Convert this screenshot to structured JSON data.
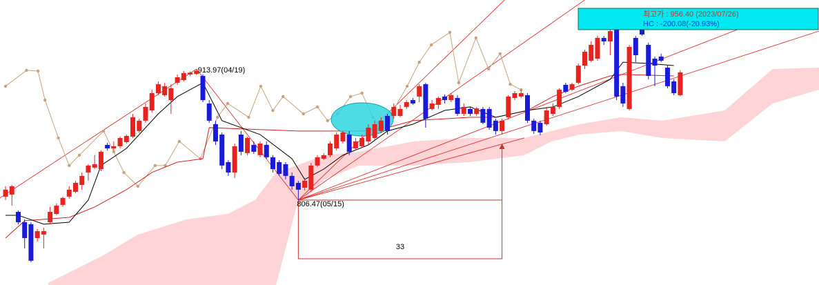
{
  "chart_data": {
    "type": "candlestick",
    "xlim": [
      -0.87,
      127.8
    ],
    "ylim": [
      736.8,
      970.6
    ],
    "up_color": "#e8231f",
    "down_color": "#1a1adb",
    "open": [
      809.3,
      811.0,
      796.8,
      788.3,
      786.7,
      775.3,
      778.2,
      788.3,
      795.1,
      802.5,
      809.3,
      813.2,
      818.9,
      829.1,
      833.1,
      831.9,
      851.7,
      848.9,
      850.6,
      854.0,
      858.5,
      863.1,
      871.6,
      880.0,
      894.2,
      892.5,
      888.5,
      902.7,
      904.9,
      909.5,
      910.0,
      908.3,
      885.7,
      868.7,
      860.2,
      837.6,
      829.1,
      860.2,
      845.0,
      851.7,
      843.3,
      851.7,
      841.6,
      837.6,
      835.9,
      826.3,
      820.6,
      816.6,
      815.0,
      834.8,
      840.4,
      843.3,
      848.9,
      854.6,
      860.2,
      848.9,
      850.6,
      854.6,
      857.4,
      863.1,
      875.5,
      875.5,
      875.5,
      882.9,
      888.5,
      891.4,
      901.5,
      881.2,
      884.6,
      891.4,
      888.5,
      890.2,
      877.2,
      881.2,
      877.2,
      881.2,
      881.2,
      871.6,
      863.1,
      874.4,
      890.2,
      891.4,
      892.5,
      871.6,
      869.9,
      868.7,
      877.2,
      882.9,
      901.0,
      897.0,
      902.7,
      916.8,
      920.8,
      922.5,
      939.5,
      936.6,
      948.0,
      899.9,
      881.2,
      939.5,
      950.8,
      933.8,
      922.5,
      924.2,
      915.1,
      903.8,
      892.5
    ],
    "high": [
      817.8,
      818.9,
      798.0,
      790.6,
      788.3,
      782.7,
      783.8,
      800.8,
      803.6,
      809.3,
      817.8,
      822.3,
      829.1,
      835.9,
      843.3,
      847.2,
      853.4,
      854.6,
      858.5,
      860.2,
      877.2,
      873.2,
      885.7,
      897.0,
      903.8,
      902.7,
      901.5,
      909.5,
      912.3,
      912.0,
      913.97,
      909.5,
      888.5,
      871.6,
      861.9,
      839.3,
      852.9,
      863.1,
      858.5,
      854.6,
      854.6,
      854.6,
      843.3,
      839.3,
      837.6,
      829.1,
      822.3,
      824.6,
      837.0,
      843.3,
      845.0,
      854.6,
      861.9,
      863.1,
      863.1,
      857.4,
      860.2,
      868.7,
      871.6,
      874.4,
      877.2,
      885.7,
      884.6,
      888.5,
      890.2,
      901.5,
      902.7,
      888.5,
      891.4,
      893.1,
      894.2,
      892.5,
      885.7,
      882.9,
      882.9,
      882.9,
      882.9,
      873.2,
      873.2,
      892.5,
      895.9,
      897.0,
      894.2,
      873.2,
      871.6,
      882.9,
      885.7,
      898.2,
      902.7,
      902.7,
      918.5,
      929.8,
      936.6,
      941.2,
      941.2,
      948.0,
      956.4,
      902.7,
      933.8,
      941.2,
      955.0,
      935.5,
      924.2,
      926.5,
      916.8,
      905.5,
      912.9
    ],
    "low": [
      806.5,
      801.9,
      786.7,
      766.8,
      755.5,
      772.5,
      766.8,
      786.7,
      794.0,
      800.8,
      807.6,
      812.1,
      815.0,
      822.3,
      831.9,
      830.2,
      847.2,
      847.2,
      848.9,
      852.9,
      857.4,
      861.4,
      869.9,
      878.3,
      892.5,
      891.4,
      877.2,
      901.0,
      903.8,
      908.3,
      909.0,
      886.8,
      869.9,
      851.7,
      831.9,
      826.3,
      824.6,
      843.3,
      843.3,
      844.4,
      841.6,
      840.4,
      829.1,
      826.3,
      823.4,
      815.0,
      806.47,
      814.4,
      813.2,
      833.6,
      839.3,
      841.6,
      847.2,
      852.9,
      843.3,
      847.2,
      849.5,
      851.7,
      855.7,
      861.4,
      860.2,
      873.2,
      874.4,
      881.2,
      884.6,
      886.8,
      865.9,
      880.0,
      881.2,
      885.7,
      886.8,
      875.5,
      875.5,
      875.5,
      875.5,
      868.7,
      864.2,
      860.2,
      860.2,
      872.7,
      888.5,
      890.2,
      869.9,
      860.8,
      859.7,
      867.6,
      875.5,
      881.2,
      894.2,
      895.9,
      901.5,
      914.0,
      919.6,
      920.8,
      933.8,
      925.3,
      888.5,
      882.9,
      880.0,
      919.6,
      941.2,
      905.5,
      899.9,
      919.6,
      898.2,
      892.5,
      891.4
    ],
    "close": [
      815.0,
      817.8,
      788.3,
      775.3,
      756.7,
      781.0,
      781.0,
      796.8,
      801.9,
      808.2,
      815.0,
      820.6,
      826.3,
      834.8,
      835.9,
      846.1,
      848.9,
      850.6,
      857.4,
      859.1,
      874.4,
      871.6,
      882.9,
      894.2,
      901.5,
      899.9,
      898.2,
      907.2,
      910.6,
      911.0,
      912.5,
      888.5,
      871.6,
      854.6,
      834.8,
      829.1,
      850.6,
      846.1,
      857.4,
      846.1,
      852.9,
      841.6,
      831.9,
      828.0,
      826.3,
      817.8,
      815.0,
      822.3,
      834.8,
      841.6,
      843.3,
      852.9,
      860.2,
      861.9,
      846.1,
      854.6,
      857.4,
      865.9,
      868.7,
      871.6,
      863.1,
      882.9,
      881.2,
      886.8,
      885.7,
      899.9,
      873.2,
      885.7,
      890.2,
      888.5,
      892.5,
      877.2,
      882.9,
      877.2,
      881.7,
      869.9,
      865.9,
      863.1,
      871.6,
      891.4,
      894.2,
      894.2,
      871.6,
      863.1,
      861.9,
      880.0,
      882.9,
      897.0,
      895.3,
      901.5,
      916.8,
      928.2,
      933.8,
      939.5,
      936.6,
      945.1,
      891.4,
      885.7,
      932.1,
      925.3,
      942.3,
      908.3,
      916.8,
      920.8,
      899.9,
      894.2,
      911.2
    ],
    "cloud": {
      "color": "#ffd4d6",
      "x": [
        6.7,
        15.4,
        20.8,
        28.4,
        34.9,
        39.2,
        42.5,
        45.7,
        50.1,
        55.5,
        64.2,
        72.8,
        81.5,
        85.8,
        90.2,
        96.7,
        103.2,
        113,
        120.5,
        127.8
      ],
      "upper": [
        738.5,
        761.2,
        778.2,
        790.6,
        795.1,
        806.5,
        829.1,
        834.8,
        843.3,
        846.1,
        854.6,
        857.4,
        857.4,
        863.1,
        868.7,
        874.4,
        871.6,
        880.0,
        914.0,
        915.1
      ],
      "lower": [
        736.8,
        736.8,
        736.8,
        736.8,
        736.8,
        736.8,
        736.8,
        800.8,
        823.4,
        834.8,
        834.8,
        837.6,
        843.3,
        854.6,
        860.2,
        863.1,
        857.4,
        854.6,
        885.7,
        897.0
      ]
    },
    "overlays": [
      {
        "color": "#c8a27e",
        "markers": true,
        "x": [
          0,
          3.3,
          5.1,
          6.2,
          8.3,
          10,
          11.6,
          15.4,
          17,
          18.6,
          20.8,
          23.5,
          25.1,
          27.3,
          30.6,
          33.3,
          34.9,
          38.2,
          40.1,
          42,
          43.6,
          46.8,
          49,
          50.6,
          52.2,
          54.2,
          56,
          57.7,
          59.3,
          60.9,
          63.1,
          65,
          66.9,
          69.8,
          71.2,
          73.9,
          75.9,
          77.7,
          79.3,
          81
        ],
        "values": [
          899.9,
          912.9,
          912.3,
          888.5,
          857.4,
          834.8,
          843.3,
          863.1,
          846.1,
          829.1,
          817.8,
          834.8,
          834.8,
          854.6,
          840.4,
          874.4,
          885.7,
          874.4,
          899.9,
          880.0,
          891.4,
          877.2,
          882.9,
          871.6,
          877.2,
          891.4,
          894.2,
          874.4,
          865.9,
          880.0,
          899.9,
          919.6,
          933.8,
          944.0,
          902.7,
          939.5,
          914.0,
          926.5,
          901.5,
          897.0
        ]
      },
      {
        "color": "#d42020",
        "x": [
          0,
          3,
          10,
          14,
          19,
          23,
          27,
          31,
          32,
          46,
          56,
          60,
          64,
          73,
          77,
          82,
          86,
          90,
          95,
          97,
          105
        ],
        "values": [
          775.3,
          789.5,
          792.3,
          800.8,
          815.0,
          829.1,
          837.6,
          840.4,
          865.9,
          863.1,
          863.1,
          865.9,
          871.6,
          874.4,
          874.4,
          880.0,
          891.4,
          899.9,
          908.3,
          909.5,
          908.3
        ]
      },
      {
        "color": "#000000",
        "x": [
          0,
          2,
          6,
          10,
          13,
          15,
          19,
          24,
          27,
          31,
          34,
          37,
          40,
          45,
          47,
          50,
          53,
          57,
          60,
          64,
          69,
          73,
          77,
          82,
          86,
          90,
          95,
          97,
          101,
          105
        ],
        "values": [
          794.0,
          794.0,
          786.7,
          788.3,
          806.5,
          834.8,
          848.9,
          877.2,
          891.4,
          902.7,
          871.6,
          865.9,
          860.2,
          840.4,
          823.4,
          831.9,
          843.3,
          851.7,
          863.1,
          868.7,
          880.0,
          882.9,
          874.4,
          880.0,
          882.9,
          891.4,
          905.5,
          919.6,
          918.5,
          916.8
        ]
      }
    ],
    "trendlines": [
      {
        "color": "#e03030",
        "x": [
          -0.87,
          30
        ],
        "values": [
          808.2,
          913.97
        ]
      },
      {
        "color": "#e03030",
        "x": [
          30,
          46
        ],
        "values": [
          913.97,
          806.47
        ]
      },
      {
        "color": "#e03030",
        "x": [
          46,
          78.4
        ],
        "values": [
          806.47,
          970.6
        ]
      },
      {
        "color": "#e03030",
        "x": [
          46,
          91.0
        ],
        "values": [
          806.47,
          970.6
        ]
      },
      {
        "color": "#e03030",
        "x": [
          46,
          118.1
        ],
        "values": [
          806.47,
          952.62
        ]
      },
      {
        "color": "#e03030",
        "x": [
          46,
          127.8
        ],
        "values": [
          806.47,
          945.1
        ]
      },
      {
        "color": "#e03030",
        "x": [
          46,
          81.5
        ],
        "values": [
          806.47,
          857.4
        ]
      }
    ],
    "peak_label": "913.97(04/19)",
    "trough_label": "806.47(05/15)",
    "high_label": "최고가 : 956.40 (2023/07/26)",
    "hc_label": "HC : -200.08(-20.93%)",
    "period_count": 33
  }
}
